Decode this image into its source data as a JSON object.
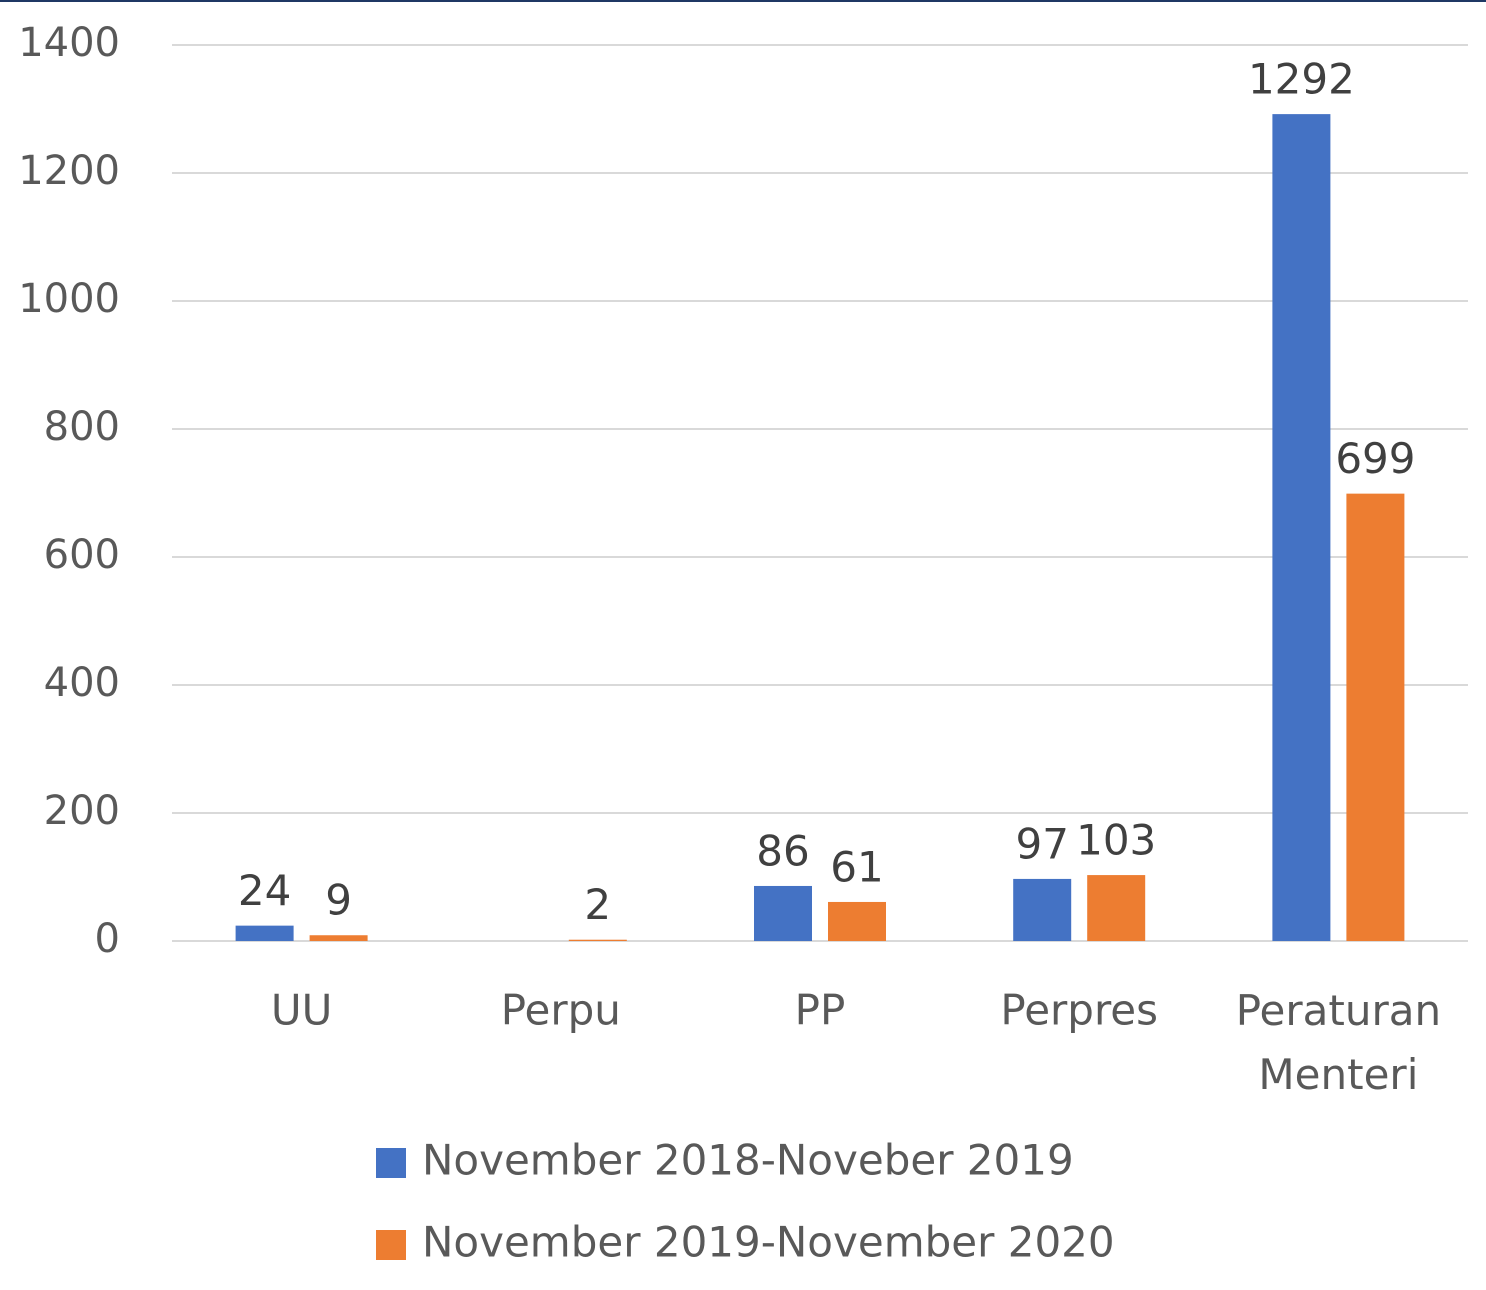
{
  "chart_data": {
    "type": "bar",
    "categories": [
      "UU",
      "Perpu",
      "PP",
      "Perpres",
      "Peraturan Menteri"
    ],
    "series": [
      {
        "name": "November 2018-Noveber 2019",
        "color": "#4472c4",
        "values": [
          24,
          null,
          86,
          97,
          1292
        ]
      },
      {
        "name": "November 2019-November 2020",
        "color": "#ed7d31",
        "values": [
          9,
          2,
          61,
          103,
          699
        ]
      }
    ],
    "ylim": [
      0,
      1400
    ],
    "yticks": [
      0,
      200,
      400,
      600,
      800,
      1000,
      1200,
      1400
    ],
    "grid": true,
    "legend": "bottom"
  }
}
